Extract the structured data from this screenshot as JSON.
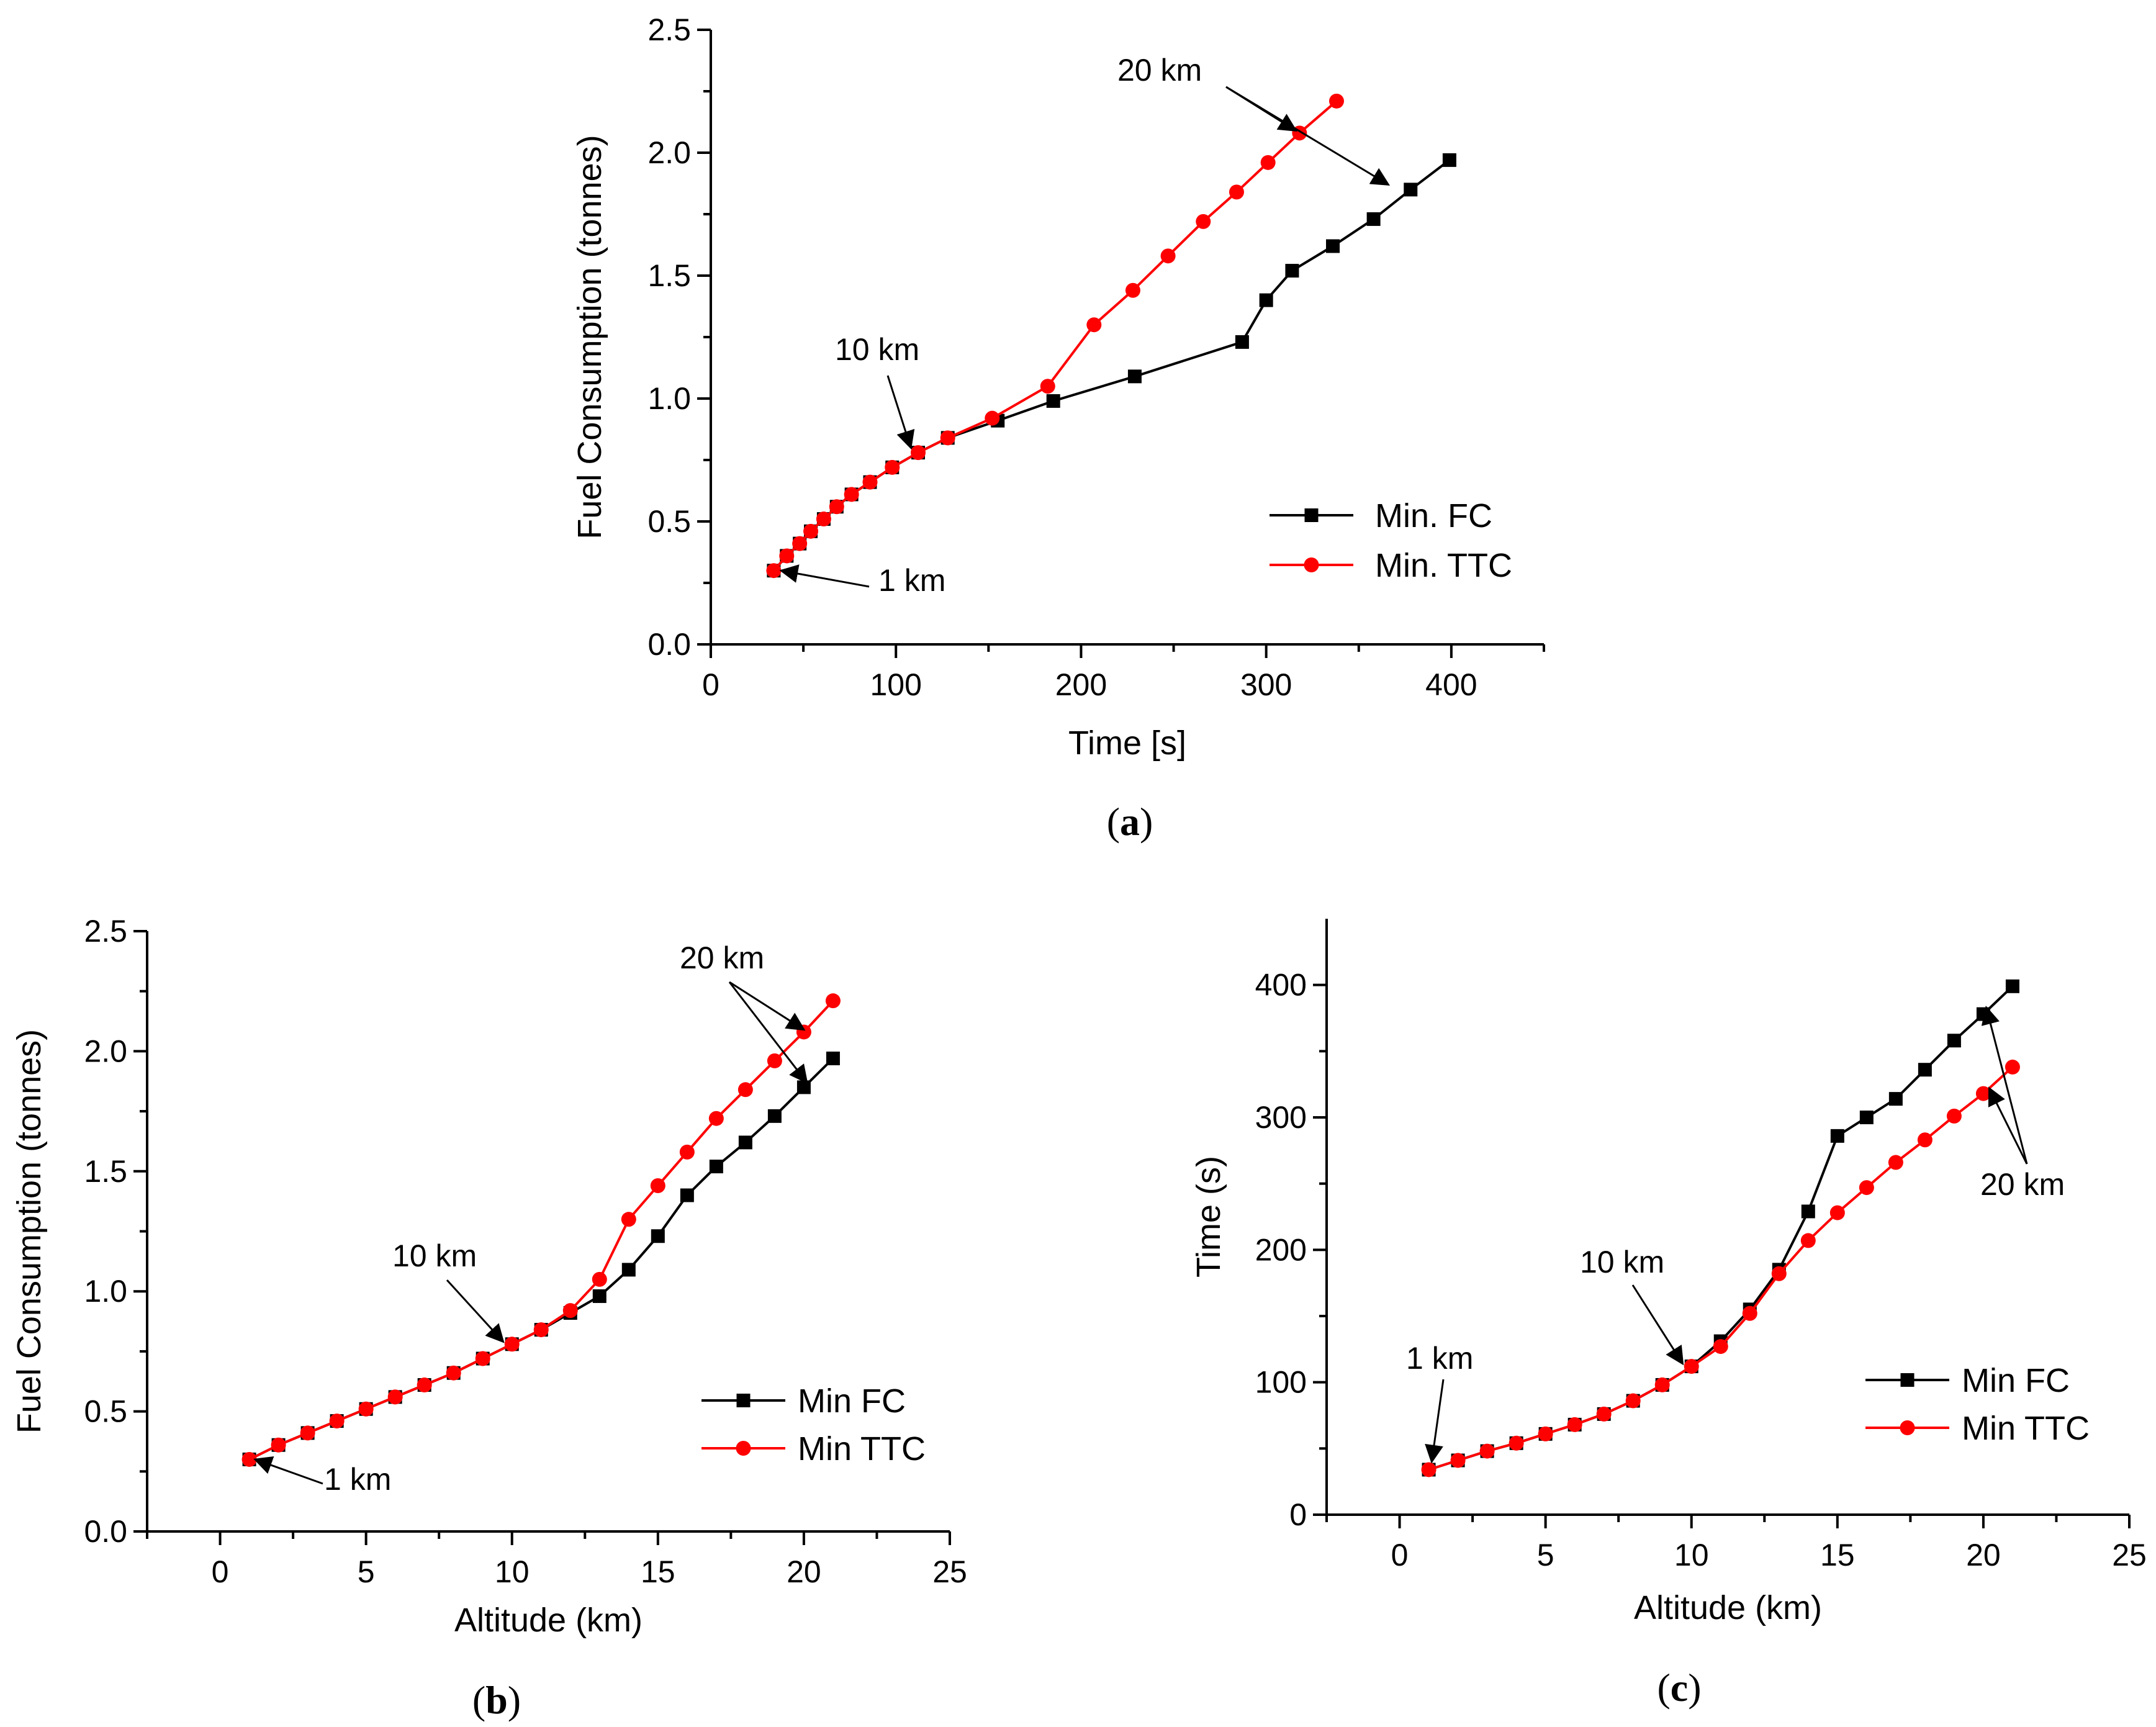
{
  "chart_data": [
    {
      "type": "line",
      "panel": "a",
      "caption": "a",
      "xlabel": "Time [s]",
      "ylabel": "Fuel Consumption (tonnes)",
      "xlim": [
        0,
        450
      ],
      "ylim": [
        0,
        2.5
      ],
      "xticks": [
        0,
        100,
        200,
        300,
        400
      ],
      "yticks": [
        0.0,
        0.5,
        1.0,
        1.5,
        2.0,
        2.5
      ],
      "ytick_labels": [
        "0.0",
        "0.5",
        "1.0",
        "1.5",
        "2.0",
        "2.5"
      ],
      "legend_position": "bottom-right",
      "series": [
        {
          "name": "Min. FC",
          "color": "#000000",
          "marker": "square",
          "x": [
            34,
            41,
            48,
            54,
            61,
            68,
            76,
            86,
            98,
            112,
            128,
            155,
            185,
            229,
            287,
            300,
            314,
            336,
            358,
            378,
            399
          ],
          "y": [
            0.3,
            0.36,
            0.41,
            0.46,
            0.51,
            0.56,
            0.61,
            0.66,
            0.72,
            0.78,
            0.84,
            0.91,
            0.99,
            1.09,
            1.23,
            1.4,
            1.52,
            1.62,
            1.73,
            1.85,
            1.97
          ]
        },
        {
          "name": "Min. TTC",
          "color": "#ff0000",
          "marker": "circle",
          "x": [
            34,
            41,
            48,
            54,
            61,
            68,
            76,
            86,
            98,
            112,
            128,
            152,
            182,
            207,
            228,
            247,
            266,
            284,
            301,
            318,
            338
          ],
          "y": [
            0.3,
            0.36,
            0.41,
            0.46,
            0.51,
            0.56,
            0.61,
            0.66,
            0.72,
            0.78,
            0.84,
            0.92,
            1.05,
            1.3,
            1.44,
            1.58,
            1.72,
            1.84,
            1.96,
            2.08,
            2.21
          ]
        }
      ],
      "annotations": [
        {
          "text": "20 km",
          "targets": [
            [
              316,
              2.09
            ],
            [
              366,
              1.87
            ]
          ]
        },
        {
          "text": "10 km",
          "targets": [
            [
              108,
              0.8
            ]
          ]
        },
        {
          "text": "1 km",
          "targets": [
            [
              38,
              0.3
            ]
          ]
        }
      ]
    },
    {
      "type": "line",
      "panel": "b",
      "caption": "b",
      "xlabel": "Altitude (km)",
      "ylabel": "Fuel Consumption (tonnes)",
      "xlim": [
        -2.5,
        25
      ],
      "ylim": [
        0,
        2.5
      ],
      "xticks": [
        0,
        5,
        10,
        15,
        20,
        25
      ],
      "yticks": [
        0.0,
        0.5,
        1.0,
        1.5,
        2.0,
        2.5
      ],
      "ytick_labels": [
        "0.0",
        "0.5",
        "1.0",
        "1.5",
        "2.0",
        "2.5"
      ],
      "legend_position": "bottom-right",
      "series": [
        {
          "name": "Min FC",
          "color": "#000000",
          "marker": "square",
          "x": [
            1,
            2,
            3,
            4,
            5,
            6,
            7,
            8,
            9,
            10,
            11,
            12,
            13,
            14,
            15,
            16,
            17,
            18,
            19,
            20,
            21
          ],
          "y": [
            0.3,
            0.36,
            0.41,
            0.46,
            0.51,
            0.56,
            0.61,
            0.66,
            0.72,
            0.78,
            0.84,
            0.91,
            0.98,
            1.09,
            1.23,
            1.4,
            1.52,
            1.62,
            1.73,
            1.85,
            1.97
          ]
        },
        {
          "name": "Min TTC",
          "color": "#ff0000",
          "marker": "circle",
          "x": [
            1,
            2,
            3,
            4,
            5,
            6,
            7,
            8,
            9,
            10,
            11,
            12,
            13,
            14,
            15,
            16,
            17,
            18,
            19,
            20,
            21
          ],
          "y": [
            0.3,
            0.36,
            0.41,
            0.46,
            0.51,
            0.56,
            0.61,
            0.66,
            0.72,
            0.78,
            0.84,
            0.92,
            1.05,
            1.3,
            1.44,
            1.58,
            1.72,
            1.84,
            1.96,
            2.08,
            2.21
          ]
        }
      ],
      "annotations": [
        {
          "text": "20 km",
          "targets": [
            [
              20,
              2.09
            ],
            [
              20.1,
              1.87
            ]
          ]
        },
        {
          "text": "10 km",
          "targets": [
            [
              9.7,
              0.79
            ]
          ]
        },
        {
          "text": "1 km",
          "targets": [
            [
              1.2,
              0.3
            ]
          ]
        }
      ]
    },
    {
      "type": "line",
      "panel": "c",
      "caption": "c",
      "xlabel": "Altitude (km)",
      "ylabel": "Time (s)",
      "xlim": [
        -2.5,
        25
      ],
      "ylim": [
        0,
        450
      ],
      "xticks": [
        0,
        5,
        10,
        15,
        20,
        25
      ],
      "yticks": [
        0,
        100,
        200,
        300,
        400
      ],
      "ytick_labels": [
        "0",
        "100",
        "200",
        "300",
        "400"
      ],
      "legend_position": "bottom-right",
      "series": [
        {
          "name": "Min FC",
          "color": "#000000",
          "marker": "square",
          "x": [
            1,
            2,
            3,
            4,
            5,
            6,
            7,
            8,
            9,
            10,
            11,
            12,
            13,
            14,
            15,
            16,
            17,
            18,
            19,
            20,
            21
          ],
          "y": [
            34,
            41,
            48,
            54,
            61,
            68,
            76,
            86,
            98,
            112,
            131,
            155,
            185,
            229,
            286,
            300,
            314,
            336,
            358,
            378,
            399
          ]
        },
        {
          "name": "Min TTC",
          "color": "#ff0000",
          "marker": "circle",
          "x": [
            1,
            2,
            3,
            4,
            5,
            6,
            7,
            8,
            9,
            10,
            11,
            12,
            13,
            14,
            15,
            16,
            17,
            18,
            19,
            20,
            21
          ],
          "y": [
            34,
            41,
            48,
            54,
            61,
            68,
            76,
            86,
            98,
            112,
            127,
            152,
            182,
            207,
            228,
            247,
            266,
            283,
            301,
            318,
            338
          ]
        }
      ],
      "annotations": [
        {
          "text": "20 km",
          "targets": [
            [
              20.1,
              383
            ],
            [
              20.2,
              322
            ]
          ]
        },
        {
          "text": "10 km",
          "targets": [
            [
              9.7,
              114
            ]
          ]
        },
        {
          "text": "1 km",
          "targets": [
            [
              1.1,
              40
            ]
          ]
        }
      ]
    }
  ]
}
